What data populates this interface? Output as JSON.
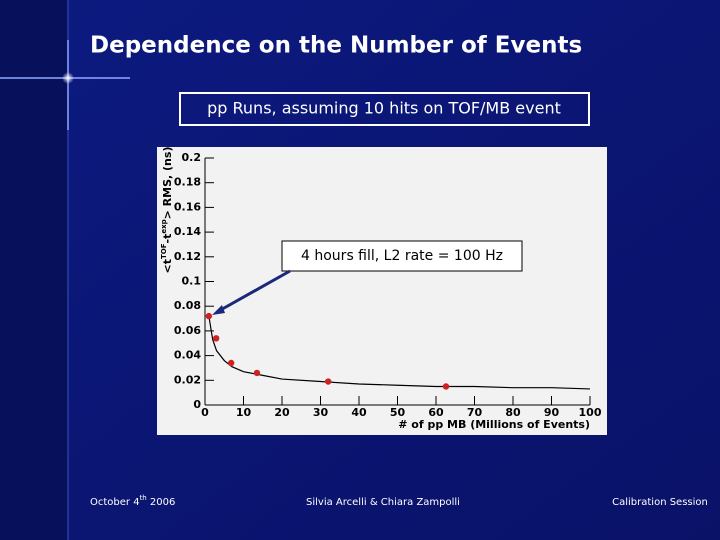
{
  "slide": {
    "title": "Dependence on the Number of Events",
    "subtitle": "pp Runs, assuming 10 hits on TOF/MB event",
    "footer_left": [
      "October 4",
      "th",
      " 2006"
    ],
    "footer_center": "Silvia Arcelli & Chiara Zampolli",
    "footer_right": "Calibration Session"
  },
  "chart_data": {
    "type": "scatter",
    "annotation": "4 hours fill, L2 rate = 100 Hz",
    "x_label": "# of pp MB (Millions of Events)",
    "y_label": [
      "<t",
      "TOF",
      "-t",
      "exp",
      "> RMS, (ns)"
    ],
    "xlim": [
      0,
      100
    ],
    "xticks": [
      0,
      10,
      20,
      30,
      40,
      50,
      60,
      70,
      80,
      90,
      100
    ],
    "ylim": [
      0,
      0.2
    ],
    "yticks": [
      0,
      0.02,
      0.04,
      0.06,
      0.08,
      0.1,
      0.12,
      0.14,
      0.16,
      0.18,
      0.2
    ],
    "series": [
      {
        "color": "#cc2222",
        "x": [
          1,
          2.9,
          6.8,
          13.5,
          32,
          62.6
        ],
        "values": [
          0.072,
          0.054,
          0.034,
          0.026,
          0.019,
          0.015
        ]
      },
      {
        "type": "line",
        "color": "#000000",
        "x": [
          1,
          2,
          3,
          5,
          7,
          10,
          15,
          20,
          30,
          40,
          50,
          60,
          70,
          80,
          90,
          100
        ],
        "values": [
          0.072,
          0.053,
          0.044,
          0.036,
          0.031,
          0.027,
          0.024,
          0.021,
          0.019,
          0.017,
          0.016,
          0.015,
          0.015,
          0.014,
          0.014,
          0.013
        ]
      }
    ]
  }
}
